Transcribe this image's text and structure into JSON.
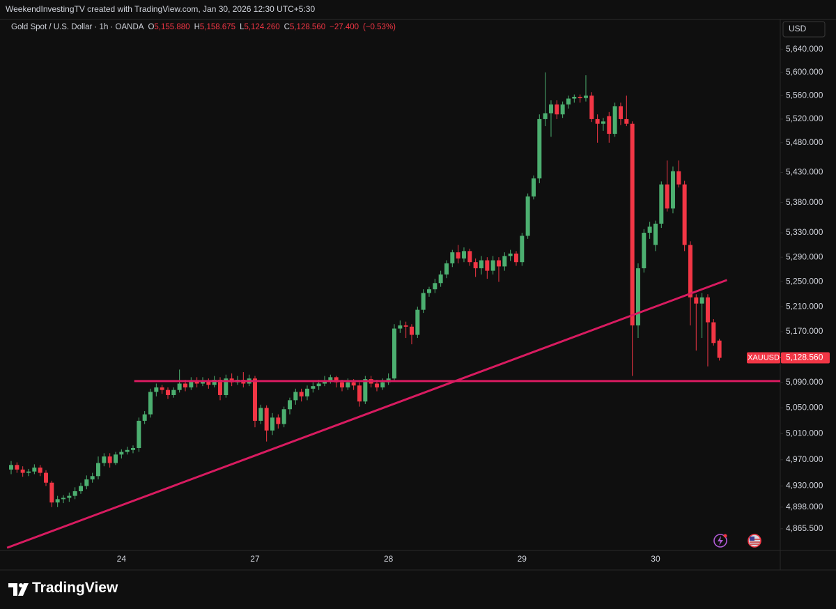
{
  "page": {
    "header": "WeekendInvestingTV created with TradingView.com, Jan 30, 2026 12:30 UTC+5:30",
    "brand": "TradingView"
  },
  "chart_data": {
    "type": "candlestick",
    "legend": {
      "symbol": "Gold Spot / U.S. Dollar · 1h · OANDA",
      "items": [
        {
          "key": "O",
          "value": 5155.88,
          "label": "5,155.880"
        },
        {
          "key": "H",
          "value": 5158.675,
          "label": "5,158.675"
        },
        {
          "key": "L",
          "value": 5124.26,
          "label": "5,124.260"
        },
        {
          "key": "C",
          "value": 5128.56,
          "label": "5,128.560"
        }
      ],
      "change": {
        "value": -27.4,
        "label": "−27.400"
      },
      "change_pct": {
        "value": -0.53,
        "label": "(−0.53%)"
      }
    },
    "currency": "USD",
    "last_price": {
      "name": "XAUUSD",
      "value": 5128.56,
      "label": "5,128.560",
      "color": "#f23645"
    },
    "up_color": "#4caf70",
    "down_color": "#f23645",
    "log_scale": true,
    "ylim": [
      4833,
      5692
    ],
    "yticks": [
      {
        "value": 5640,
        "label": "5,640.000"
      },
      {
        "value": 5600,
        "label": "5,600.000"
      },
      {
        "value": 5560,
        "label": "5,560.000"
      },
      {
        "value": 5520,
        "label": "5,520.000"
      },
      {
        "value": 5480,
        "label": "5,480.000"
      },
      {
        "value": 5430,
        "label": "5,430.000"
      },
      {
        "value": 5380,
        "label": "5,380.000"
      },
      {
        "value": 5330,
        "label": "5,330.000"
      },
      {
        "value": 5290,
        "label": "5,290.000"
      },
      {
        "value": 5250,
        "label": "5,250.000"
      },
      {
        "value": 5210,
        "label": "5,210.000"
      },
      {
        "value": 5170,
        "label": "5,170.000"
      },
      {
        "value": 5090,
        "label": "5,090.000"
      },
      {
        "value": 5050,
        "label": "5,050.000"
      },
      {
        "value": 5010,
        "label": "5,010.000"
      },
      {
        "value": 4970,
        "label": "4,970.000"
      },
      {
        "value": 4930,
        "label": "4,930.000"
      },
      {
        "value": 4898,
        "label": "4,898.000"
      },
      {
        "value": 4865.5,
        "label": "4,865.500"
      }
    ],
    "categories": [
      null,
      null,
      null,
      null,
      null,
      null,
      null,
      null,
      null,
      null,
      null,
      null,
      null,
      null,
      null,
      null,
      null,
      null,
      null,
      "24",
      null,
      null,
      null,
      null,
      null,
      null,
      null,
      null,
      null,
      null,
      null,
      null,
      null,
      null,
      null,
      null,
      null,
      null,
      null,
      null,
      null,
      null,
      "27",
      null,
      null,
      null,
      null,
      null,
      null,
      null,
      null,
      null,
      null,
      null,
      null,
      null,
      null,
      null,
      null,
      null,
      null,
      null,
      null,
      null,
      null,
      "28",
      null,
      null,
      null,
      null,
      null,
      null,
      null,
      null,
      null,
      null,
      null,
      null,
      null,
      null,
      null,
      null,
      null,
      null,
      null,
      null,
      null,
      null,
      "29",
      null,
      null,
      null,
      null,
      null,
      null,
      null,
      null,
      null,
      null,
      null,
      null,
      null,
      null,
      null,
      null,
      null,
      null,
      null,
      null,
      null,
      null,
      "30",
      null,
      null,
      null,
      null,
      null,
      null,
      null,
      null,
      null,
      null,
      null
    ],
    "ohlc": [
      [
        4955,
        4968,
        4948,
        4962
      ],
      [
        4962,
        4966,
        4950,
        4955
      ],
      [
        4955,
        4960,
        4944,
        4950
      ],
      [
        4950,
        4956,
        4945,
        4952
      ],
      [
        4952,
        4963,
        4948,
        4958
      ],
      [
        4958,
        4962,
        4945,
        4950
      ],
      [
        4950,
        4954,
        4930,
        4935
      ],
      [
        4935,
        4938,
        4898,
        4905
      ],
      [
        4905,
        4915,
        4898,
        4910
      ],
      [
        4910,
        4916,
        4904,
        4912
      ],
      [
        4912,
        4920,
        4906,
        4915
      ],
      [
        4915,
        4928,
        4910,
        4922
      ],
      [
        4922,
        4935,
        4918,
        4930
      ],
      [
        4930,
        4946,
        4925,
        4940
      ],
      [
        4940,
        4950,
        4935,
        4945
      ],
      [
        4945,
        4975,
        4940,
        4965
      ],
      [
        4965,
        4980,
        4960,
        4975
      ],
      [
        4975,
        4980,
        4958,
        4965
      ],
      [
        4965,
        4982,
        4962,
        4978
      ],
      [
        4978,
        4986,
        4972,
        4982
      ],
      [
        4982,
        4990,
        4978,
        4985
      ],
      [
        4985,
        4992,
        4980,
        4988
      ],
      [
        4988,
        5035,
        4982,
        5030
      ],
      [
        5030,
        5045,
        5025,
        5040
      ],
      [
        5040,
        5080,
        5035,
        5075
      ],
      [
        5075,
        5088,
        5068,
        5082
      ],
      [
        5082,
        5086,
        5072,
        5078
      ],
      [
        5078,
        5082,
        5064,
        5070
      ],
      [
        5070,
        5082,
        5066,
        5078
      ],
      [
        5078,
        5110,
        5074,
        5088
      ],
      [
        5088,
        5094,
        5076,
        5082
      ],
      [
        5082,
        5098,
        5078,
        5092
      ],
      [
        5092,
        5098,
        5082,
        5088
      ],
      [
        5088,
        5098,
        5084,
        5092
      ],
      [
        5092,
        5096,
        5080,
        5086
      ],
      [
        5086,
        5100,
        5082,
        5094
      ],
      [
        5094,
        5098,
        5062,
        5070
      ],
      [
        5070,
        5102,
        5066,
        5096
      ],
      [
        5096,
        5104,
        5084,
        5090
      ],
      [
        5090,
        5100,
        5086,
        5094
      ],
      [
        5094,
        5106,
        5082,
        5088
      ],
      [
        5088,
        5102,
        5084,
        5096
      ],
      [
        5096,
        5100,
        5020,
        5030
      ],
      [
        5030,
        5055,
        5025,
        5050
      ],
      [
        5050,
        5054,
        4998,
        5015
      ],
      [
        5015,
        5042,
        5008,
        5035
      ],
      [
        5035,
        5040,
        5018,
        5025
      ],
      [
        5025,
        5052,
        5020,
        5048
      ],
      [
        5048,
        5066,
        5040,
        5062
      ],
      [
        5062,
        5080,
        5055,
        5075
      ],
      [
        5075,
        5080,
        5060,
        5068
      ],
      [
        5068,
        5085,
        5062,
        5080
      ],
      [
        5080,
        5090,
        5074,
        5084
      ],
      [
        5084,
        5094,
        5078,
        5088
      ],
      [
        5088,
        5100,
        5084,
        5093
      ],
      [
        5093,
        5102,
        5088,
        5098
      ],
      [
        5098,
        5100,
        5082,
        5090
      ],
      [
        5090,
        5094,
        5076,
        5082
      ],
      [
        5082,
        5096,
        5078,
        5090
      ],
      [
        5090,
        5095,
        5078,
        5085
      ],
      [
        5085,
        5090,
        5052,
        5060
      ],
      [
        5060,
        5100,
        5056,
        5095
      ],
      [
        5095,
        5100,
        5082,
        5088
      ],
      [
        5088,
        5094,
        5076,
        5082
      ],
      [
        5082,
        5096,
        5078,
        5090
      ],
      [
        5090,
        5104,
        5086,
        5096
      ],
      [
        5096,
        5182,
        5092,
        5175
      ],
      [
        5175,
        5188,
        5168,
        5180
      ],
      [
        5180,
        5186,
        5160,
        5178
      ],
      [
        5178,
        5182,
        5150,
        5165
      ],
      [
        5165,
        5210,
        5160,
        5205
      ],
      [
        5205,
        5238,
        5200,
        5232
      ],
      [
        5232,
        5242,
        5226,
        5238
      ],
      [
        5238,
        5255,
        5232,
        5248
      ],
      [
        5248,
        5268,
        5242,
        5262
      ],
      [
        5262,
        5285,
        5256,
        5280
      ],
      [
        5280,
        5302,
        5274,
        5298
      ],
      [
        5298,
        5310,
        5280,
        5288
      ],
      [
        5288,
        5306,
        5282,
        5300
      ],
      [
        5300,
        5304,
        5276,
        5282
      ],
      [
        5282,
        5288,
        5258,
        5272
      ],
      [
        5272,
        5292,
        5262,
        5285
      ],
      [
        5285,
        5290,
        5255,
        5268
      ],
      [
        5268,
        5292,
        5262,
        5285
      ],
      [
        5285,
        5290,
        5250,
        5275
      ],
      [
        5275,
        5298,
        5268,
        5292
      ],
      [
        5292,
        5302,
        5284,
        5296
      ],
      [
        5296,
        5300,
        5276,
        5282
      ],
      [
        5282,
        5330,
        5276,
        5325
      ],
      [
        5325,
        5395,
        5320,
        5390
      ],
      [
        5390,
        5425,
        5385,
        5420
      ],
      [
        5420,
        5528,
        5412,
        5520
      ],
      [
        5520,
        5600,
        5508,
        5530
      ],
      [
        5530,
        5552,
        5490,
        5545
      ],
      [
        5545,
        5552,
        5520,
        5528
      ],
      [
        5528,
        5550,
        5522,
        5545
      ],
      [
        5545,
        5560,
        5538,
        5555
      ],
      [
        5555,
        5562,
        5548,
        5558
      ],
      [
        5558,
        5562,
        5548,
        5556
      ],
      [
        5556,
        5595,
        5550,
        5560
      ],
      [
        5560,
        5566,
        5515,
        5520
      ],
      [
        5520,
        5528,
        5480,
        5512
      ],
      [
        5512,
        5522,
        5500,
        5516
      ],
      [
        5525,
        5532,
        5480,
        5495
      ],
      [
        5495,
        5548,
        5490,
        5542
      ],
      [
        5542,
        5548,
        5510,
        5520
      ],
      [
        5520,
        5560,
        5508,
        5512
      ],
      [
        5512,
        5516,
        5100,
        5180
      ],
      [
        5180,
        5280,
        5160,
        5272
      ],
      [
        5272,
        5336,
        5265,
        5330
      ],
      [
        5330,
        5348,
        5320,
        5340
      ],
      [
        5310,
        5350,
        5300,
        5345
      ],
      [
        5345,
        5415,
        5338,
        5410
      ],
      [
        5410,
        5450,
        5365,
        5370
      ],
      [
        5370,
        5440,
        5362,
        5432
      ],
      [
        5432,
        5450,
        5405,
        5410
      ],
      [
        5410,
        5416,
        5300,
        5310
      ],
      [
        5310,
        5316,
        5180,
        5225
      ],
      [
        5225,
        5230,
        5140,
        5215
      ],
      [
        5215,
        5232,
        5160,
        5225
      ],
      [
        5225,
        5230,
        5115,
        5185
      ],
      [
        5185,
        5190,
        5148,
        5152
      ],
      [
        5155.88,
        5158.675,
        5124.26,
        5128.56
      ]
    ],
    "lines": [
      {
        "color": "#d81b60",
        "x": [
          21.2,
          132.5
        ],
        "y": [
          5092,
          5092
        ]
      },
      {
        "color": "#d81b60",
        "x": [
          -0.7,
          123.3
        ],
        "y": [
          4837,
          5253
        ]
      }
    ]
  }
}
